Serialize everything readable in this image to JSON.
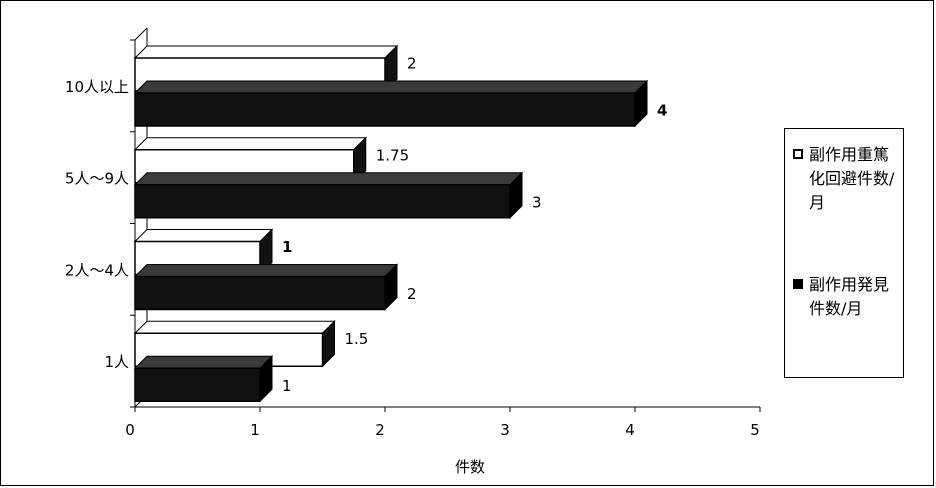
{
  "chart_data": {
    "type": "bar",
    "orientation": "horizontal",
    "three_d": true,
    "categories": [
      "10人以上",
      "5人～9人",
      "2人～4人",
      "1人"
    ],
    "series": [
      {
        "name": "副作用重篤化回避件数/月",
        "values": [
          2,
          1.75,
          1,
          1.5
        ],
        "color": "#ffffff"
      },
      {
        "name": "副作用発見件数/月",
        "values": [
          4,
          3,
          2,
          1
        ],
        "color": "#000000"
      }
    ],
    "data_labels": [
      [
        "2",
        "1.75",
        "1",
        "1.5"
      ],
      [
        "4",
        "3",
        "2",
        "1"
      ]
    ],
    "x_ticks": [
      "0",
      "1",
      "2",
      "3",
      "4",
      "5"
    ],
    "xlim": [
      0,
      5
    ],
    "xlabel": "件数",
    "ylabel": "",
    "grid": false,
    "legend": "right"
  }
}
